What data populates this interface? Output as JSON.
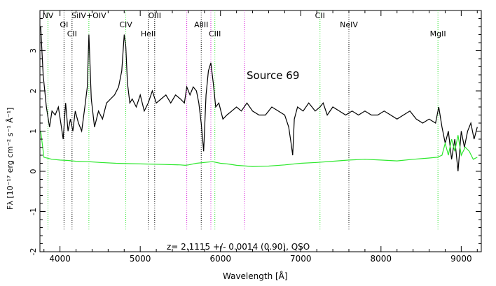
{
  "chart_data": {
    "type": "line",
    "title": "Source 69",
    "annotation": "z= 2.1115 +/- 0.0014 (0.90), QSO",
    "xlabel": "Wavelength [Å]",
    "ylabel": "Fλ [10⁻¹⁷ erg cm⁻² s⁻¹ Å⁻¹]",
    "xlim": [
      3750,
      9250
    ],
    "ylim": [
      -2,
      4
    ],
    "xticks": [
      4000,
      5000,
      6000,
      7000,
      8000,
      9000
    ],
    "xtick_labels": [
      "4000",
      "5000",
      "6000",
      "7000",
      "8000",
      "9000"
    ],
    "yticks": [
      -2,
      -1,
      0,
      1,
      2,
      3
    ],
    "ytick_labels": [
      "-2",
      "-1",
      "0",
      "1",
      "2",
      "3"
    ],
    "grid": false,
    "series": [
      {
        "role": "spectrum",
        "color": "#000000",
        "x": [
          3760,
          3790,
          3830,
          3870,
          3900,
          3940,
          3980,
          4010,
          4040,
          4070,
          4100,
          4130,
          4160,
          4190,
          4230,
          4270,
          4310,
          4340,
          4360,
          4390,
          4430,
          4480,
          4530,
          4580,
          4630,
          4680,
          4730,
          4770,
          4800,
          4820,
          4840,
          4870,
          4900,
          4950,
          5000,
          5050,
          5100,
          5150,
          5200,
          5260,
          5320,
          5380,
          5440,
          5500,
          5550,
          5580,
          5620,
          5660,
          5700,
          5730,
          5760,
          5790,
          5820,
          5850,
          5880,
          5910,
          5940,
          5980,
          6030,
          6080,
          6140,
          6200,
          6260,
          6330,
          6400,
          6480,
          6560,
          6640,
          6720,
          6800,
          6850,
          6880,
          6900,
          6920,
          6960,
          7030,
          7100,
          7180,
          7240,
          7280,
          7330,
          7400,
          7480,
          7560,
          7640,
          7720,
          7800,
          7880,
          7960,
          8040,
          8120,
          8200,
          8280,
          8360,
          8440,
          8520,
          8600,
          8680,
          8720,
          8760,
          8800,
          8840,
          8880,
          8920,
          8960,
          9000,
          9040,
          9080,
          9120,
          9160,
          9200
        ],
        "y": [
          3.6,
          2.4,
          1.6,
          1.1,
          1.5,
          1.4,
          1.6,
          1.2,
          0.8,
          1.7,
          1.0,
          1.3,
          1.0,
          1.5,
          1.2,
          1.0,
          1.6,
          2.1,
          3.4,
          1.8,
          1.1,
          1.5,
          1.3,
          1.7,
          1.8,
          1.9,
          2.1,
          2.5,
          3.4,
          3.1,
          2.2,
          1.7,
          1.8,
          1.6,
          1.9,
          1.5,
          1.7,
          2.0,
          1.7,
          1.8,
          1.9,
          1.7,
          1.9,
          1.8,
          1.7,
          2.1,
          1.9,
          2.1,
          2.0,
          1.7,
          1.2,
          0.5,
          1.9,
          2.5,
          2.7,
          2.2,
          1.6,
          1.7,
          1.3,
          1.4,
          1.5,
          1.6,
          1.5,
          1.7,
          1.5,
          1.4,
          1.4,
          1.6,
          1.5,
          1.4,
          1.1,
          0.7,
          0.4,
          1.3,
          1.6,
          1.5,
          1.7,
          1.5,
          1.6,
          1.7,
          1.4,
          1.6,
          1.5,
          1.4,
          1.5,
          1.4,
          1.5,
          1.4,
          1.4,
          1.5,
          1.4,
          1.3,
          1.4,
          1.5,
          1.3,
          1.2,
          1.3,
          1.2,
          1.6,
          1.1,
          0.7,
          1.0,
          0.3,
          0.8,
          0.0,
          1.0,
          0.6,
          1.0,
          1.2,
          0.8,
          1.1
        ]
      },
      {
        "role": "error",
        "color": "#2ee82e",
        "x": [
          3760,
          3800,
          3900,
          4000,
          4100,
          4200,
          4350,
          4500,
          4700,
          4900,
          5100,
          5300,
          5500,
          5560,
          5600,
          5700,
          5800,
          5900,
          6000,
          6100,
          6200,
          6400,
          6600,
          6800,
          7000,
          7200,
          7400,
          7600,
          7800,
          8000,
          8200,
          8400,
          8600,
          8700,
          8760,
          8800,
          8840,
          8880,
          8920,
          8960,
          9000,
          9050,
          9100,
          9150,
          9200
        ],
        "y": [
          1.0,
          0.35,
          0.3,
          0.28,
          0.27,
          0.25,
          0.24,
          0.22,
          0.2,
          0.19,
          0.18,
          0.17,
          0.16,
          0.15,
          0.16,
          0.2,
          0.22,
          0.24,
          0.2,
          0.18,
          0.15,
          0.12,
          0.13,
          0.16,
          0.2,
          0.22,
          0.25,
          0.28,
          0.3,
          0.28,
          0.26,
          0.3,
          0.33,
          0.35,
          0.4,
          0.7,
          0.4,
          0.8,
          0.5,
          0.9,
          0.4,
          0.6,
          0.5,
          0.3,
          0.35
        ]
      }
    ],
    "line_ids": [
      {
        "label": "NV",
        "x": 3850,
        "color": "#2ee82e",
        "row": 0
      },
      {
        "label": "OI",
        "x": 4050,
        "color": "#000000",
        "row": 1
      },
      {
        "label": "CII",
        "x": 4150,
        "color": "#000000",
        "row": 2
      },
      {
        "label": "SiIV+OIV",
        "x": 4360,
        "color": "#2ee82e",
        "row": 0
      },
      {
        "label": "CIV",
        "x": 4820,
        "color": "#2ee82e",
        "row": 1
      },
      {
        "label": "HeII",
        "x": 5100,
        "color": "#000000",
        "row": 2
      },
      {
        "label": "OIII",
        "x": 5180,
        "color": "#000000",
        "row": 0
      },
      {
        "label": "AlIII",
        "x": 5760,
        "color": "#000000",
        "row": 1
      },
      {
        "label": "CIII",
        "x": 5930,
        "color": "#2ee82e",
        "row": 2
      },
      {
        "label": "CII",
        "x": 7240,
        "color": "#2ee82e",
        "row": 0
      },
      {
        "label": "NeIV",
        "x": 7600,
        "color": "#000000",
        "row": 1
      },
      {
        "label": "MgII",
        "x": 8710,
        "color": "#2ee82e",
        "row": 2
      }
    ],
    "extra_markers": [
      {
        "x": 5580,
        "color": "#d81bd8"
      },
      {
        "x": 5880,
        "color": "#d81bd8"
      },
      {
        "x": 6300,
        "color": "#d81bd8"
      }
    ]
  }
}
